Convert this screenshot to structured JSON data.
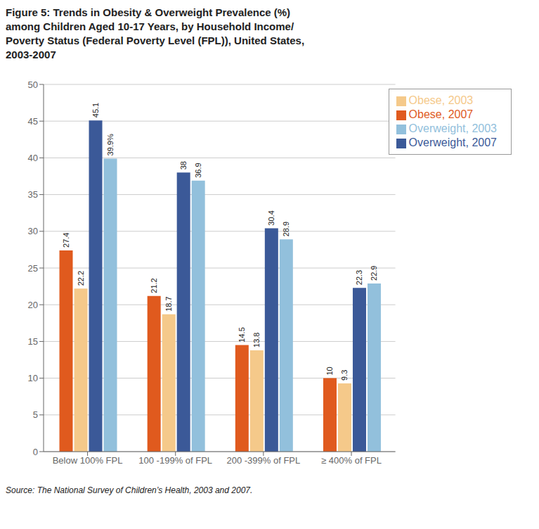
{
  "chart_data": {
    "type": "bar",
    "title": "Figure 5: Trends in Obesity & Overweight Prevalence (%)\namong Children Aged 10-17 Years, by Household Income/\nPoverty Status (Federal Poverty Level (FPL)), United States,\n2003-2007",
    "annotations": [
      "Source: The National Survey of Children’s Health, 2003 and 2007."
    ],
    "categories": [
      "Below 100% FPL",
      "100 -199% of FPL",
      "200 -399% of FPL",
      "≥ 400% of FPL"
    ],
    "series": [
      {
        "name": "Obese, 2007",
        "color": "#E05A1E",
        "values": [
          27.4,
          21.2,
          14.5,
          10.0
        ]
      },
      {
        "name": "Obese, 2003",
        "color": "#F5C98A",
        "values": [
          22.2,
          18.7,
          13.8,
          9.3
        ]
      },
      {
        "name": "Overweight, 2007",
        "color": "#3B5998",
        "values": [
          45.1,
          38.0,
          30.4,
          22.3
        ]
      },
      {
        "name": "Overweight, 2003",
        "color": "#92C0DC",
        "values": [
          39.9,
          36.9,
          28.9,
          22.9
        ],
        "value_labels": [
          "39.9%",
          "36.9",
          "28.9",
          "22.9"
        ]
      }
    ],
    "ylim": [
      0,
      50
    ],
    "yticks": [
      0,
      5,
      10,
      15,
      20,
      25,
      30,
      35,
      40,
      45,
      50
    ],
    "grid": true,
    "legend": "upper right",
    "data_labels": true
  }
}
